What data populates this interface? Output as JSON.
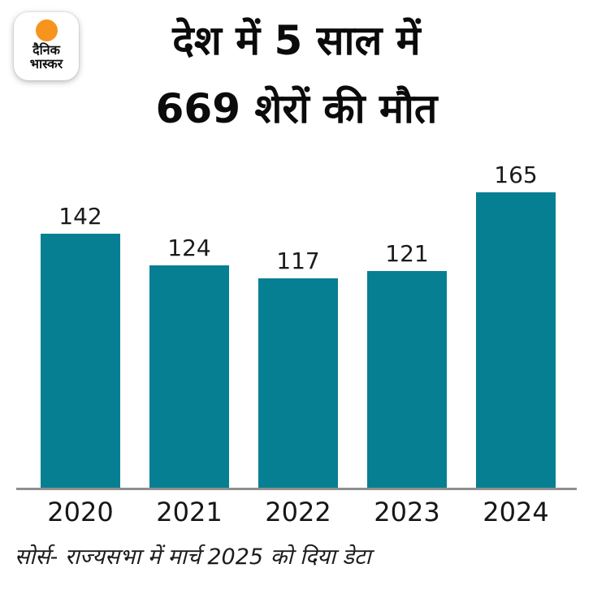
{
  "logo": {
    "line1": "दैनिक",
    "line2": "भास्कर",
    "dot_color": "#F7941E"
  },
  "title": {
    "line1": "देश में 5 साल में",
    "line2": "669 शेरों की मौत"
  },
  "chart_data": {
    "type": "bar",
    "title": "देश में 5 साल में 669 शेरों की मौत",
    "categories": [
      "2020",
      "2021",
      "2022",
      "2023",
      "2024"
    ],
    "values": [
      142,
      124,
      117,
      121,
      165
    ],
    "xlabel": "",
    "ylabel": "",
    "ylim": [
      0,
      165
    ],
    "grid": false,
    "legend_position": "none",
    "bar_color": "#077F92",
    "axis_line_color": "#8f8f8f",
    "value_labels_shown": true
  },
  "source": "सोर्स- राज्यसभा में मार्च 2025 को दिया डेटा"
}
